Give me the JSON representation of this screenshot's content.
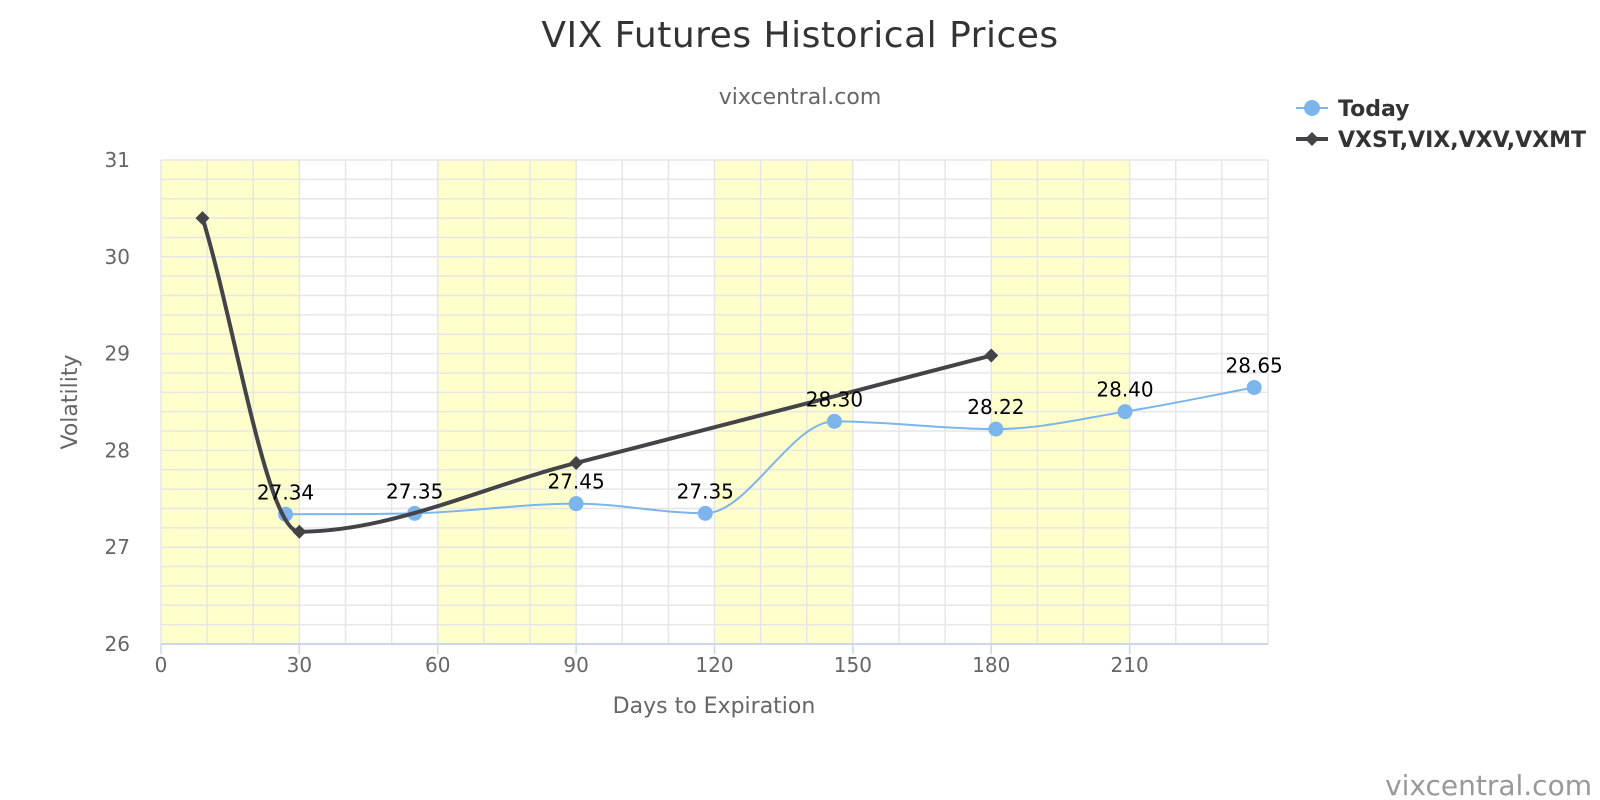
{
  "chart_data": {
    "type": "line",
    "title": "VIX Futures Historical Prices",
    "subtitle": "vixcentral.com",
    "xlabel": "Days to Expiration",
    "ylabel": "Volatility",
    "xlim": [
      0,
      240
    ],
    "ylim": [
      26,
      31
    ],
    "x_ticks": [
      0,
      30,
      60,
      90,
      120,
      150,
      180,
      210
    ],
    "y_ticks": [
      26,
      27,
      28,
      29,
      30,
      31
    ],
    "grid": true,
    "legend_position": "top-right",
    "shaded_x_bands": [
      [
        0,
        30
      ],
      [
        60,
        90
      ],
      [
        120,
        150
      ],
      [
        180,
        210
      ]
    ],
    "band_color": "#ffffcc",
    "series": [
      {
        "name": "Today",
        "color": "#7cb5ec",
        "marker": "circle",
        "smooth": true,
        "x": [
          27,
          55,
          90,
          118,
          146,
          181,
          209,
          237
        ],
        "y": [
          27.34,
          27.35,
          27.45,
          27.35,
          28.3,
          28.22,
          28.4,
          28.65
        ],
        "data_labels": [
          "27.34",
          "27.35",
          "27.45",
          "27.35",
          "28.30",
          "28.22",
          "28.40",
          "28.65"
        ]
      },
      {
        "name": "VXST,VIX,VXV,VXMT",
        "color": "#434348",
        "marker": "diamond",
        "smooth": true,
        "x": [
          9,
          30,
          90,
          180
        ],
        "y": [
          30.4,
          27.16,
          27.87,
          28.98
        ]
      }
    ],
    "credit": "vixcentral.com"
  }
}
